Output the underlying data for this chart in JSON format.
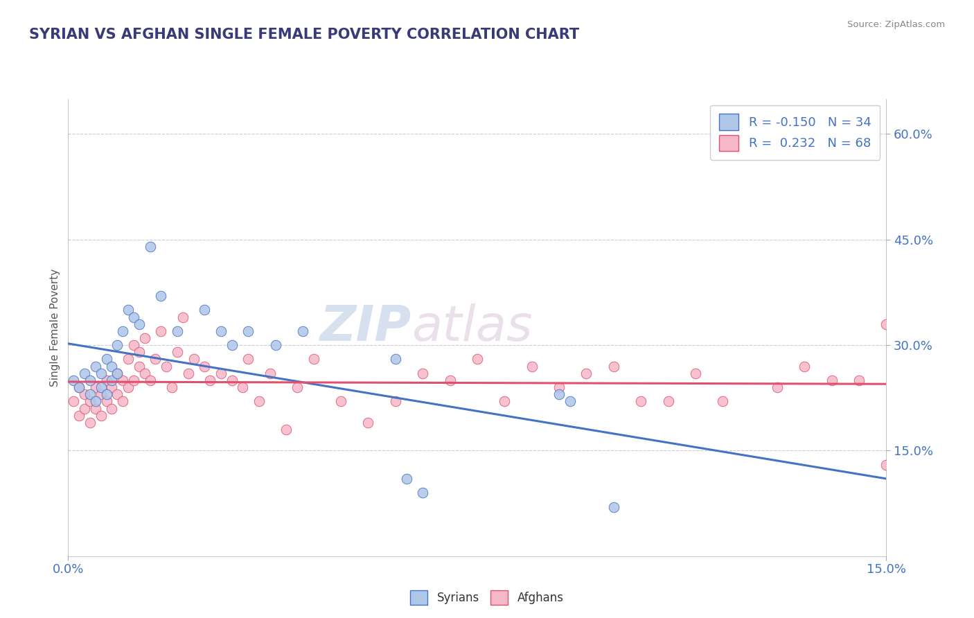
{
  "title": "SYRIAN VS AFGHAN SINGLE FEMALE POVERTY CORRELATION CHART",
  "source_text": "Source: ZipAtlas.com",
  "ylabel": "Single Female Poverty",
  "xlim": [
    0.0,
    0.15
  ],
  "ylim": [
    0.0,
    0.65
  ],
  "xtick_positions": [
    0.0,
    0.15
  ],
  "xtick_labels": [
    "0.0%",
    "15.0%"
  ],
  "ytick_values": [
    0.15,
    0.3,
    0.45,
    0.6
  ],
  "ytick_labels": [
    "15.0%",
    "30.0%",
    "45.0%",
    "60.0%"
  ],
  "watermark_zip": "ZIP",
  "watermark_atlas": "atlas",
  "legend_R_syrian": "-0.150",
  "legend_N_syrian": "34",
  "legend_R_afghan": "0.232",
  "legend_N_afghan": "68",
  "syrian_fill": "#aec6e8",
  "syrian_edge": "#4472c4",
  "afghan_fill": "#f5b8c8",
  "afghan_edge": "#e05070",
  "syrian_line_color": "#4472c4",
  "afghan_line_color": "#e05070",
  "title_color": "#3a3a7a",
  "axis_color": "#4472c4",
  "source_color": "#888888",
  "bg_color": "#ffffff",
  "grid_color": "#ccccdd",
  "syrians_x": [
    0.001,
    0.002,
    0.003,
    0.004,
    0.004,
    0.005,
    0.005,
    0.006,
    0.006,
    0.007,
    0.007,
    0.008,
    0.008,
    0.009,
    0.009,
    0.01,
    0.011,
    0.012,
    0.013,
    0.015,
    0.017,
    0.02,
    0.025,
    0.028,
    0.03,
    0.033,
    0.038,
    0.043,
    0.06,
    0.062,
    0.065,
    0.09,
    0.092,
    0.1
  ],
  "syrians_y": [
    0.25,
    0.24,
    0.26,
    0.23,
    0.25,
    0.22,
    0.27,
    0.24,
    0.26,
    0.23,
    0.28,
    0.25,
    0.27,
    0.3,
    0.26,
    0.32,
    0.35,
    0.34,
    0.33,
    0.44,
    0.37,
    0.32,
    0.35,
    0.32,
    0.3,
    0.32,
    0.3,
    0.32,
    0.28,
    0.11,
    0.09,
    0.23,
    0.22,
    0.07
  ],
  "afghans_x": [
    0.001,
    0.002,
    0.002,
    0.003,
    0.003,
    0.004,
    0.004,
    0.005,
    0.005,
    0.006,
    0.006,
    0.007,
    0.007,
    0.008,
    0.008,
    0.009,
    0.009,
    0.01,
    0.01,
    0.011,
    0.011,
    0.012,
    0.012,
    0.013,
    0.013,
    0.014,
    0.014,
    0.015,
    0.016,
    0.017,
    0.018,
    0.019,
    0.02,
    0.021,
    0.022,
    0.023,
    0.025,
    0.026,
    0.028,
    0.03,
    0.032,
    0.033,
    0.035,
    0.037,
    0.04,
    0.042,
    0.045,
    0.05,
    0.055,
    0.06,
    0.065,
    0.07,
    0.075,
    0.08,
    0.085,
    0.09,
    0.095,
    0.1,
    0.105,
    0.11,
    0.115,
    0.12,
    0.13,
    0.135,
    0.14,
    0.145,
    0.15,
    0.15
  ],
  "afghans_y": [
    0.22,
    0.2,
    0.24,
    0.21,
    0.23,
    0.19,
    0.22,
    0.21,
    0.24,
    0.2,
    0.23,
    0.22,
    0.25,
    0.21,
    0.24,
    0.23,
    0.26,
    0.22,
    0.25,
    0.28,
    0.24,
    0.25,
    0.3,
    0.27,
    0.29,
    0.26,
    0.31,
    0.25,
    0.28,
    0.32,
    0.27,
    0.24,
    0.29,
    0.34,
    0.26,
    0.28,
    0.27,
    0.25,
    0.26,
    0.25,
    0.24,
    0.28,
    0.22,
    0.26,
    0.18,
    0.24,
    0.28,
    0.22,
    0.19,
    0.22,
    0.26,
    0.25,
    0.28,
    0.22,
    0.27,
    0.24,
    0.26,
    0.27,
    0.22,
    0.22,
    0.26,
    0.22,
    0.24,
    0.27,
    0.25,
    0.25,
    0.33,
    0.13
  ]
}
